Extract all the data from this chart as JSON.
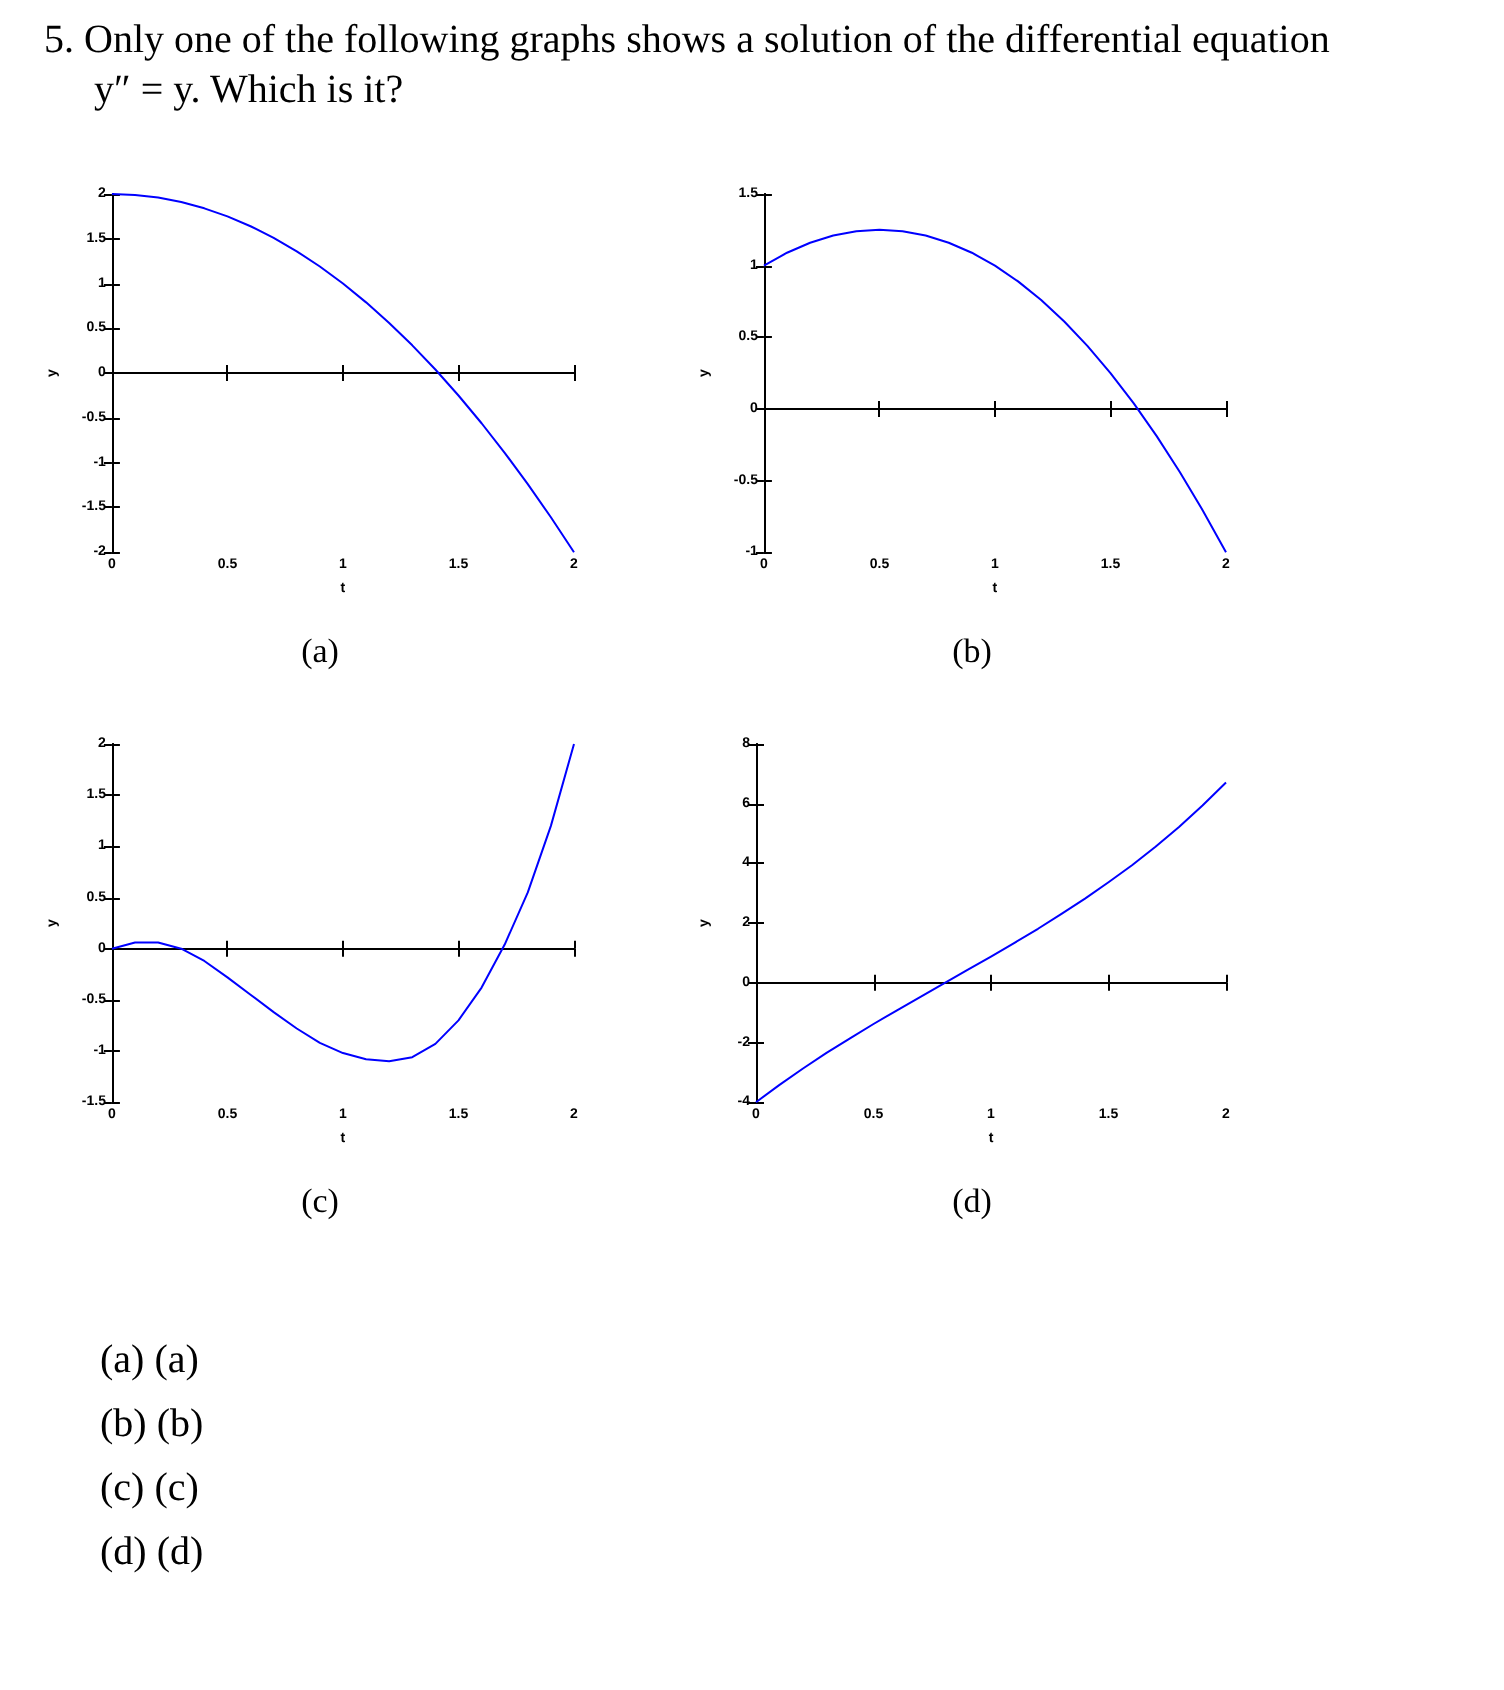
{
  "chart_data": [
    {
      "type": "other",
      "title": "5. Only one of the following graphs shows a solution of the differential equation y″ = y. Which is it?"
    },
    {
      "type": "line",
      "subtitle": "(a)",
      "xlabel": "t",
      "ylabel": "y",
      "color": "#0000ff",
      "xlim": [
        0,
        2
      ],
      "xticks": [
        0,
        0.5,
        1,
        1.5,
        2
      ],
      "ylim": [
        -2,
        2
      ],
      "yticks": [
        -2,
        -1.5,
        -1,
        -0.5,
        0,
        0.5,
        1,
        1.5,
        2
      ],
      "x": [
        0,
        0.1,
        0.2,
        0.3,
        0.4,
        0.5,
        0.6,
        0.7,
        0.8,
        0.9,
        1,
        1.1,
        1.2,
        1.3,
        1.4,
        1.5,
        1.6,
        1.7,
        1.8,
        1.9,
        2
      ],
      "values": [
        2,
        1.99,
        1.96,
        1.91,
        1.84,
        1.75,
        1.64,
        1.51,
        1.36,
        1.19,
        1,
        0.79,
        0.56,
        0.31,
        0.04,
        -0.25,
        -0.56,
        -0.89,
        -1.24,
        -1.61,
        -2
      ]
    },
    {
      "type": "line",
      "subtitle": "(b)",
      "xlabel": "t",
      "ylabel": "y",
      "color": "#0000ff",
      "xlim": [
        0,
        2
      ],
      "xticks": [
        0,
        0.5,
        1,
        1.5,
        2
      ],
      "ylim": [
        -1,
        1.5
      ],
      "yticks": [
        -1,
        -0.5,
        0,
        0.5,
        1,
        1.5
      ],
      "x": [
        0,
        0.1,
        0.2,
        0.3,
        0.4,
        0.5,
        0.6,
        0.7,
        0.8,
        0.9,
        1,
        1.1,
        1.2,
        1.3,
        1.4,
        1.5,
        1.6,
        1.7,
        1.8,
        1.9,
        2
      ],
      "values": [
        1,
        1.09,
        1.16,
        1.21,
        1.24,
        1.25,
        1.24,
        1.21,
        1.16,
        1.09,
        1,
        0.89,
        0.76,
        0.61,
        0.44,
        0.25,
        0.04,
        -0.19,
        -0.44,
        -0.71,
        -1
      ]
    },
    {
      "type": "line",
      "subtitle": "(c)",
      "xlabel": "t",
      "ylabel": "y",
      "color": "#0000ff",
      "xlim": [
        0,
        2
      ],
      "xticks": [
        0,
        0.5,
        1,
        1.5,
        2
      ],
      "ylim": [
        -1.5,
        2
      ],
      "yticks": [
        -1.5,
        -1,
        -0.5,
        0,
        0.5,
        1,
        1.5,
        2
      ],
      "x": [
        0,
        0.1,
        0.2,
        0.3,
        0.4,
        0.5,
        0.6,
        0.7,
        0.8,
        0.9,
        1,
        1.1,
        1.2,
        1.3,
        1.4,
        1.5,
        1.6,
        1.7,
        1.8,
        1.9,
        2
      ],
      "values": [
        0,
        0.06,
        0.06,
        0,
        -0.12,
        -0.28,
        -0.45,
        -0.62,
        -0.78,
        -0.92,
        -1.02,
        -1.08,
        -1.1,
        -1.06,
        -0.93,
        -0.7,
        -0.38,
        0.04,
        0.55,
        1.2,
        2
      ]
    },
    {
      "type": "line",
      "subtitle": "(d)",
      "xlabel": "t",
      "ylabel": "y",
      "color": "#0000ff",
      "xlim": [
        0,
        2
      ],
      "xticks": [
        0,
        0.5,
        1,
        1.5,
        2
      ],
      "ylim": [
        -4,
        8
      ],
      "yticks": [
        -4,
        -2,
        0,
        2,
        4,
        6,
        8
      ],
      "x": [
        0,
        0.1,
        0.2,
        0.3,
        0.4,
        0.5,
        0.6,
        0.7,
        0.8,
        0.9,
        1,
        1.1,
        1.2,
        1.3,
        1.4,
        1.5,
        1.6,
        1.7,
        1.8,
        1.9,
        2
      ],
      "values": [
        -4,
        -3.42,
        -2.87,
        -2.35,
        -1.86,
        -1.38,
        -0.92,
        -0.47,
        -0.02,
        0.43,
        0.88,
        1.34,
        1.81,
        2.31,
        2.82,
        3.37,
        3.94,
        4.56,
        5.22,
        5.94,
        6.71
      ]
    },
    {
      "type": "other",
      "annotations": [
        "(a) (a)",
        "(b) (b)",
        "(c) (c)",
        "(d) (d)"
      ]
    }
  ]
}
